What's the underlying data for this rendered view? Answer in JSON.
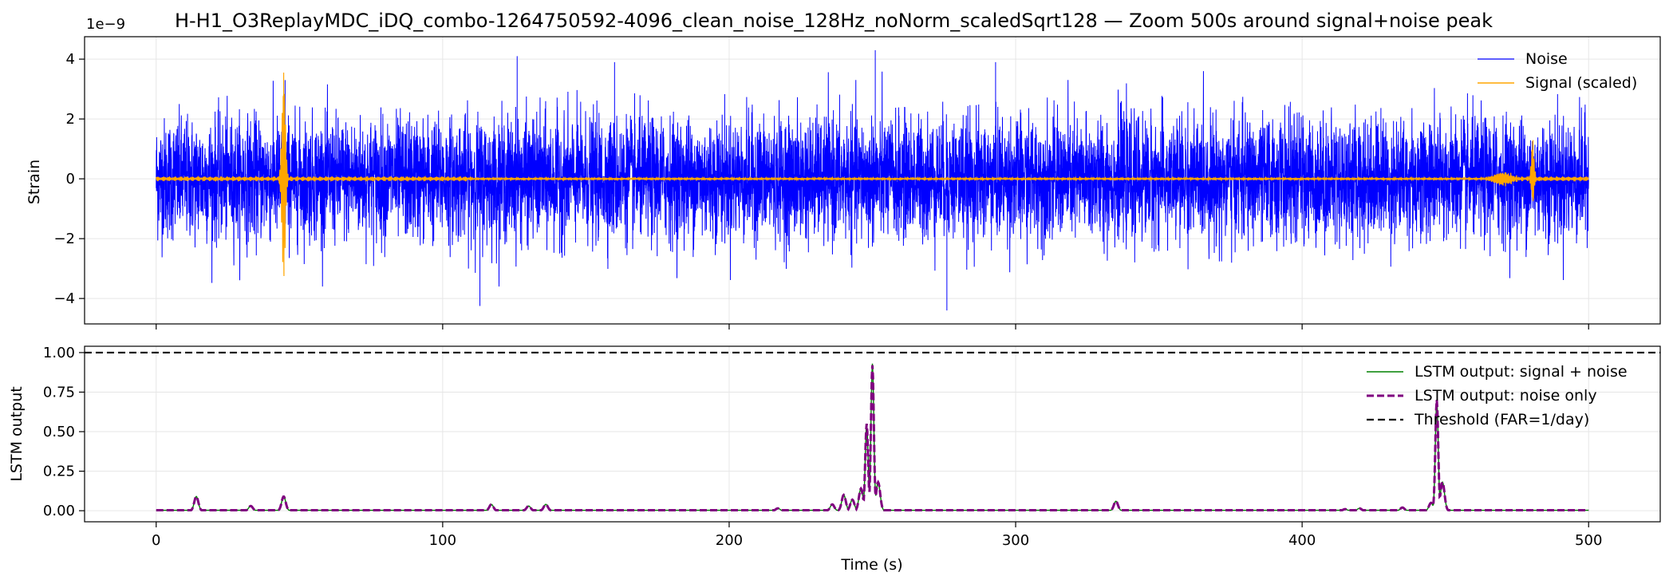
{
  "title": "H-H1_O3ReplayMDC_iDQ_combo-1264750592-4096_clean_noise_128Hz_noNorm_scaledSqrt128 — Zoom 500s around signal+noise peak",
  "chart_data": [
    {
      "type": "line",
      "title": "H-H1_O3ReplayMDC_iDQ_combo-1264750592-4096_clean_noise_128Hz_noNorm_scaledSqrt128 — Zoom 500s around signal+noise peak",
      "xlabel": "",
      "ylabel": "Strain",
      "y_offset_text": "1e−9",
      "xlim": [
        -25,
        525
      ],
      "ylim": [
        -4.85,
        4.75
      ],
      "y_ticks": [
        4,
        2,
        0,
        -2,
        -4
      ],
      "y_tick_labels": [
        "4",
        "2",
        "0",
        "−2",
        "−4"
      ],
      "x_ticks": [
        0,
        100,
        200,
        300,
        400,
        500
      ],
      "grid": true,
      "legend_position": "top-right",
      "series": [
        {
          "name": "Noise",
          "color": "#0000ff",
          "description_values": "dense Gaussian-like noise, typical envelope ±2.5e-9, extremes 4.3e-9 at t≈251 and −4.4e-9 at t≈276",
          "amplitude_rms": 1.0,
          "extremes": [
            [
              45,
              3.3
            ],
            [
              126,
              4.1
            ],
            [
              160,
              3.9
            ],
            [
              251,
              4.3
            ],
            [
              276,
              -4.4
            ],
            [
              293,
              3.9
            ],
            [
              113,
              -4.25
            ]
          ]
        },
        {
          "name": "Signal (scaled)",
          "color": "#ffa500",
          "baseline_amplitude": 0.08,
          "bursts": [
            {
              "t": 44.5,
              "peak": 3.55,
              "trough": -3.25,
              "width": 1.2
            },
            {
              "t": 480.5,
              "peak": 1.25,
              "trough": -0.75,
              "width": 1.0
            },
            {
              "t": 470,
              "peak": 0.2,
              "trough": -0.2,
              "width": 6
            }
          ]
        }
      ]
    },
    {
      "type": "line",
      "xlabel": "Time (s)",
      "ylabel": "LSTM output",
      "xlim": [
        -25,
        525
      ],
      "ylim": [
        -0.07,
        1.04
      ],
      "x_ticks": [
        0,
        100,
        200,
        300,
        400,
        500
      ],
      "x_tick_labels": [
        "0",
        "100",
        "200",
        "300",
        "400",
        "500"
      ],
      "y_ticks": [
        0.0,
        0.25,
        0.5,
        0.75,
        1.0
      ],
      "y_tick_labels": [
        "0.00",
        "0.25",
        "0.50",
        "0.75",
        "1.00"
      ],
      "grid": true,
      "legend_position": "top-right",
      "threshold": {
        "name": "Threshold (FAR=1/day)",
        "value": 1.0,
        "color": "#000000",
        "style": "dashed"
      },
      "series": [
        {
          "name": "LSTM output: signal + noise",
          "color": "#008000",
          "style": "solid",
          "peaks": [
            [
              14,
              0.09
            ],
            [
              33,
              0.03
            ],
            [
              44.5,
              0.09
            ],
            [
              117,
              0.04
            ],
            [
              130,
              0.03
            ],
            [
              136,
              0.04
            ],
            [
              217,
              0.015
            ],
            [
              236,
              0.04
            ],
            [
              240,
              0.1
            ],
            [
              243,
              0.07
            ],
            [
              246,
              0.14
            ],
            [
              248,
              0.55
            ],
            [
              250,
              0.93
            ],
            [
              252,
              0.18
            ],
            [
              335,
              0.06
            ],
            [
              415,
              0.01
            ],
            [
              420,
              0.015
            ],
            [
              435,
              0.02
            ],
            [
              445,
              0.05
            ],
            [
              447,
              0.7
            ],
            [
              449,
              0.18
            ]
          ]
        },
        {
          "name": "LSTM output: noise only",
          "color": "#800080",
          "style": "dashed",
          "peaks": [
            [
              14,
              0.09
            ],
            [
              33,
              0.03
            ],
            [
              44.5,
              0.09
            ],
            [
              117,
              0.04
            ],
            [
              130,
              0.03
            ],
            [
              136,
              0.04
            ],
            [
              217,
              0.015
            ],
            [
              236,
              0.04
            ],
            [
              240,
              0.1
            ],
            [
              243,
              0.07
            ],
            [
              246,
              0.14
            ],
            [
              248,
              0.55
            ],
            [
              250,
              0.92
            ],
            [
              252,
              0.18
            ],
            [
              335,
              0.06
            ],
            [
              415,
              0.01
            ],
            [
              420,
              0.015
            ],
            [
              435,
              0.02
            ],
            [
              445,
              0.05
            ],
            [
              447,
              0.7
            ],
            [
              449,
              0.18
            ]
          ]
        }
      ]
    }
  ]
}
